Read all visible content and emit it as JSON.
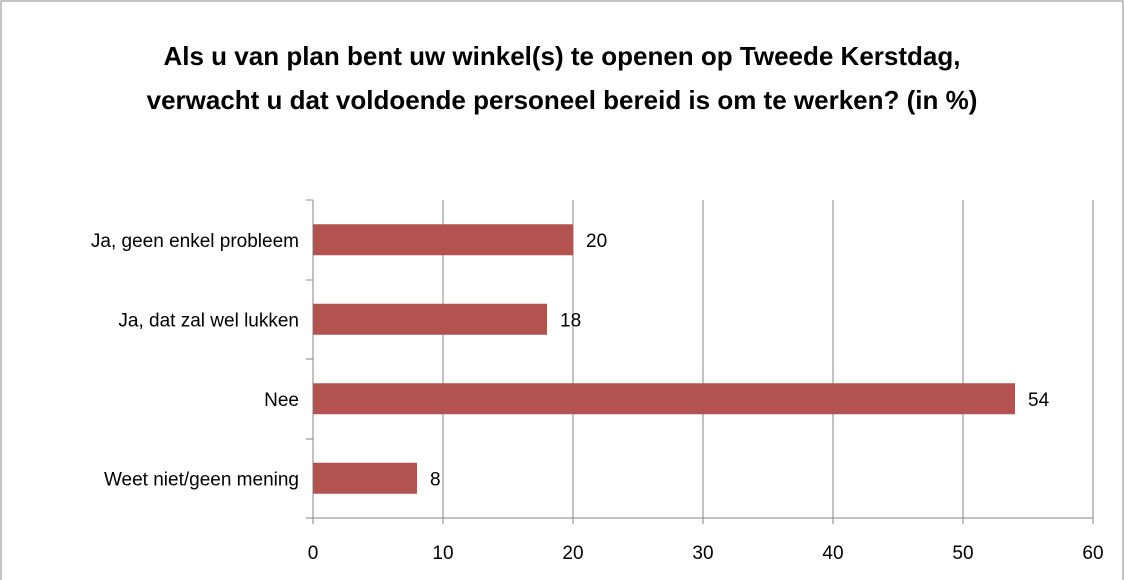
{
  "chart_data": {
    "type": "bar",
    "orientation": "horizontal",
    "title": "Als u van plan bent uw winkel(s) te openen op Tweede Kerstdag, verwacht u dat voldoende personeel bereid is om te werken? (in %)",
    "categories": [
      "Ja, geen enkel probleem",
      "Ja, dat zal wel lukken",
      "Nee",
      "Weet niet/geen mening"
    ],
    "values": [
      20,
      18,
      54,
      8
    ],
    "color": "#b3534f",
    "xlim": [
      0,
      60
    ],
    "xticks": [
      0,
      10,
      20,
      30,
      40,
      50,
      60
    ],
    "grid": true
  }
}
